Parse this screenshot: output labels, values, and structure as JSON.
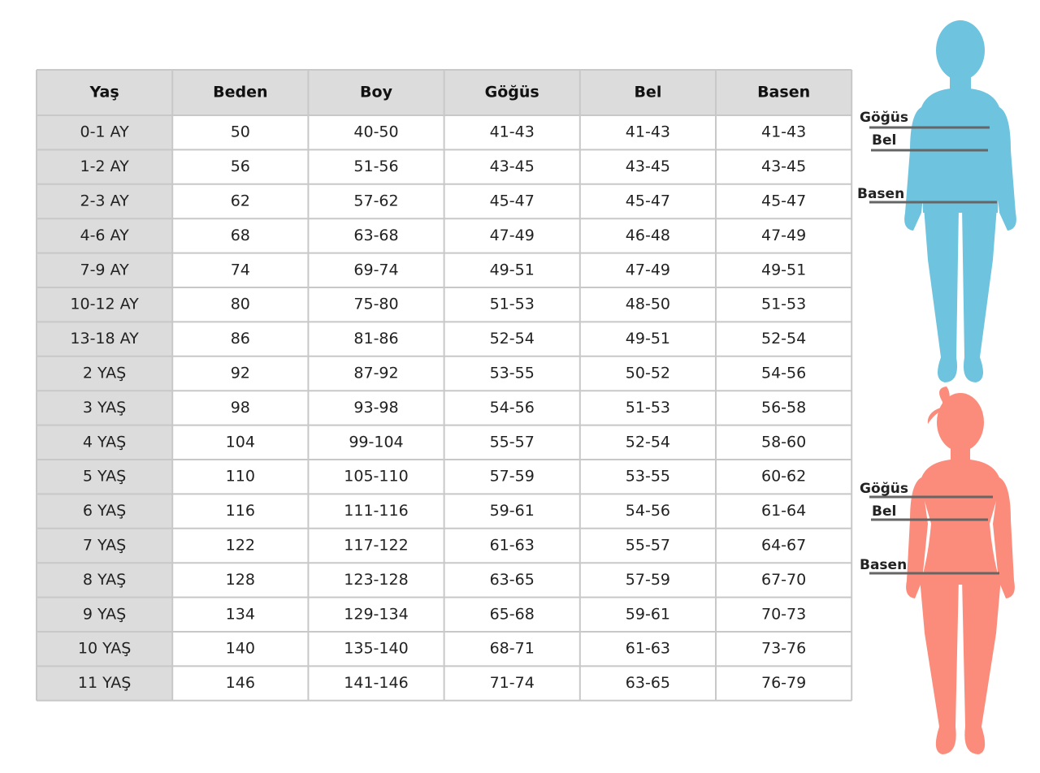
{
  "table": {
    "header": [
      "Yaş",
      "Beden",
      "Boy",
      "Göğüs",
      "Bel",
      "Basen"
    ],
    "rows": [
      [
        "0-1 AY",
        "50",
        "40-50",
        "41-43",
        "41-43",
        "41-43"
      ],
      [
        "1-2 AY",
        "56",
        "51-56",
        "43-45",
        "43-45",
        "43-45"
      ],
      [
        "2-3 AY",
        "62",
        "57-62",
        "45-47",
        "45-47",
        "45-47"
      ],
      [
        "4-6 AY",
        "68",
        "63-68",
        "47-49",
        "46-48",
        "47-49"
      ],
      [
        "7-9 AY",
        "74",
        "69-74",
        "49-51",
        "47-49",
        "49-51"
      ],
      [
        "10-12 AY",
        "80",
        "75-80",
        "51-53",
        "48-50",
        "51-53"
      ],
      [
        "13-18 AY",
        "86",
        "81-86",
        "52-54",
        "49-51",
        "52-54"
      ],
      [
        "2 YAŞ",
        "92",
        "87-92",
        "53-55",
        "50-52",
        "54-56"
      ],
      [
        "3 YAŞ",
        "98",
        "93-98",
        "54-56",
        "51-53",
        "56-58"
      ],
      [
        "4 YAŞ",
        "104",
        "99-104",
        "55-57",
        "52-54",
        "58-60"
      ],
      [
        "5 YAŞ",
        "110",
        "105-110",
        "57-59",
        "53-55",
        "60-62"
      ],
      [
        "6 YAŞ",
        "116",
        "111-116",
        "59-61",
        "54-56",
        "61-64"
      ],
      [
        "7 YAŞ",
        "122",
        "117-122",
        "61-63",
        "55-57",
        "64-67"
      ],
      [
        "8 YAŞ",
        "128",
        "123-128",
        "63-65",
        "57-59",
        "67-70"
      ],
      [
        "9 YAŞ",
        "134",
        "129-134",
        "65-68",
        "59-61",
        "70-73"
      ],
      [
        "10 YAŞ",
        "140",
        "135-140",
        "68-71",
        "61-63",
        "73-76"
      ],
      [
        "11 YAŞ",
        "146",
        "141-146",
        "71-74",
        "63-65",
        "76-79"
      ]
    ]
  },
  "figures": [
    {
      "labels": [
        "Göğüs",
        "Bel",
        "Basen"
      ]
    },
    {
      "labels": [
        "Göğüs",
        "Bel",
        "Basen"
      ]
    }
  ]
}
